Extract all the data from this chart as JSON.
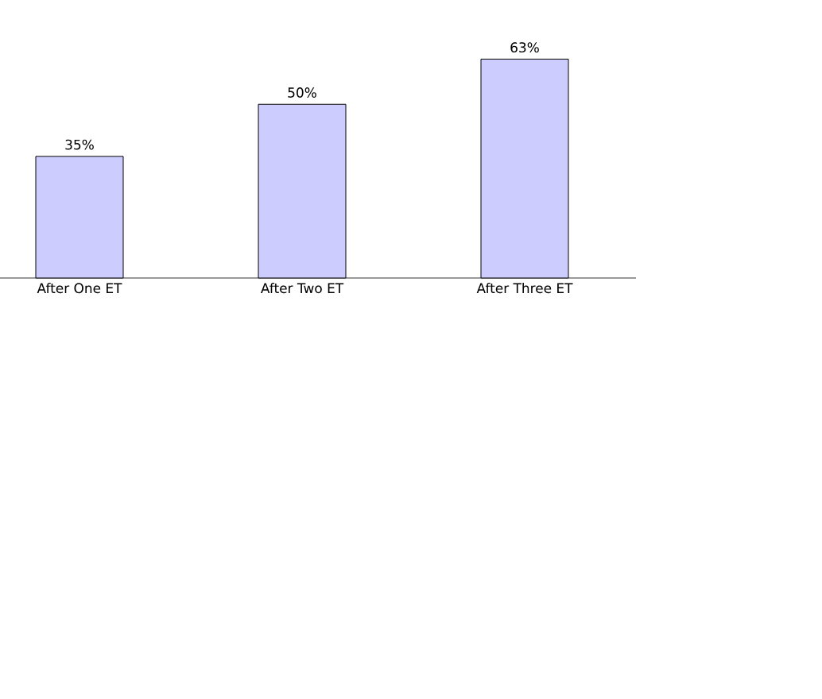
{
  "chart_data": {
    "type": "bar",
    "categories": [
      "After One ET",
      "After Two ET",
      "After Three ET"
    ],
    "values": [
      35,
      50,
      63
    ],
    "value_labels": [
      "35%",
      "50%",
      "63%"
    ],
    "color": "#ccccff"
  }
}
